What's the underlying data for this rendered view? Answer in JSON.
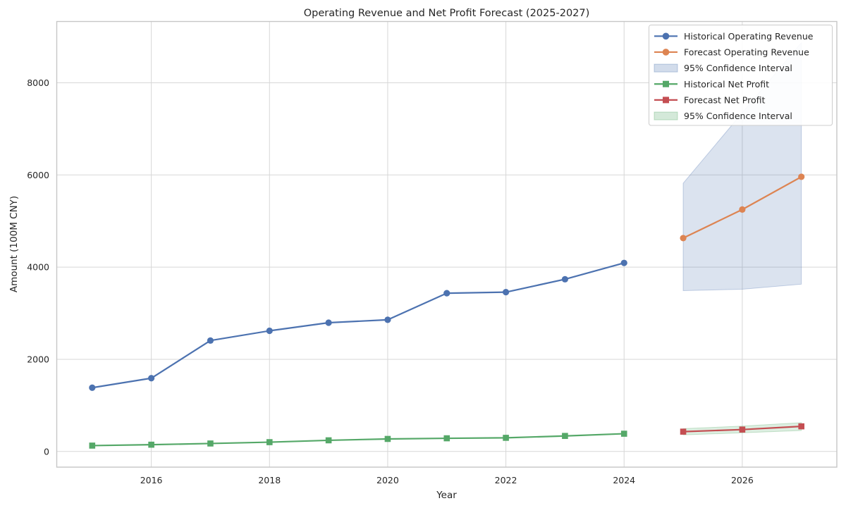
{
  "title": "Operating Revenue and Net Profit Forecast (2025-2027)",
  "chart_data": {
    "type": "line",
    "title": "Operating Revenue and Net Profit Forecast (2025-2027)",
    "xlabel": "Year",
    "ylabel": "Amount (100M CNY)",
    "xlim": [
      2014.4,
      2027.6
    ],
    "ylim": [
      -340,
      9330
    ],
    "xticks": [
      2016,
      2018,
      2020,
      2022,
      2024,
      2026
    ],
    "yticks": [
      0,
      2000,
      4000,
      6000,
      8000
    ],
    "grid": true,
    "grid_color": "#d7d7d7",
    "spine_color": "#c6c6c6",
    "legend_position": "upper right",
    "series": [
      {
        "slug": "historical-operating-revenue",
        "name": "Historical Operating Revenue",
        "kind": "line",
        "marker": "circle",
        "color": "#4C72B0",
        "x": [
          2015,
          2016,
          2017,
          2018,
          2019,
          2020,
          2021,
          2022,
          2023,
          2024
        ],
        "y": [
          1384,
          1590,
          2407,
          2618,
          2794,
          2857,
          3434,
          3457,
          3737,
          4091
        ]
      },
      {
        "slug": "forecast-operating-revenue",
        "name": "Forecast Operating Revenue",
        "kind": "line",
        "marker": "circle",
        "color": "#DD8452",
        "x": [
          2025,
          2026,
          2027
        ],
        "y": [
          4630,
          5250,
          5960
        ]
      },
      {
        "slug": "revenue-confidence-band",
        "name": "95% Confidence Interval",
        "kind": "band",
        "color": "#4C72B0",
        "opacity": 0.2,
        "x": [
          2025,
          2026,
          2027
        ],
        "lower": [
          3490,
          3520,
          3630
        ],
        "upper": [
          5820,
          7350,
          8870
        ]
      },
      {
        "slug": "historical-net-profit",
        "name": "Historical Net Profit",
        "kind": "line",
        "marker": "square",
        "color": "#55A868",
        "x": [
          2015,
          2016,
          2017,
          2018,
          2019,
          2020,
          2021,
          2022,
          2023,
          2024
        ],
        "y": [
          127,
          147,
          173,
          202,
          242,
          272,
          286,
          296,
          337,
          385
        ]
      },
      {
        "slug": "forecast-net-profit",
        "name": "Forecast Net Profit",
        "kind": "line",
        "marker": "square",
        "color": "#C44E52",
        "x": [
          2025,
          2026,
          2027
        ],
        "y": [
          430,
          475,
          545
        ]
      },
      {
        "slug": "net-profit-confidence-band",
        "name": "95% Confidence Interval",
        "kind": "band",
        "color": "#55A868",
        "opacity": 0.2,
        "x": [
          2025,
          2026,
          2027
        ],
        "lower": [
          360,
          405,
          455
        ],
        "upper": [
          495,
          550,
          625
        ]
      }
    ]
  },
  "legend": {
    "entries": [
      {
        "label": "Historical Operating Revenue",
        "swatch": "line-circle",
        "color": "#4C72B0"
      },
      {
        "label": "Forecast Operating Revenue",
        "swatch": "line-circle",
        "color": "#DD8452"
      },
      {
        "label": "95% Confidence Interval",
        "swatch": "patch",
        "color": "#4C72B0"
      },
      {
        "label": "Historical Net Profit",
        "swatch": "line-square",
        "color": "#55A868"
      },
      {
        "label": "Forecast Net Profit",
        "swatch": "line-square",
        "color": "#C44E52"
      },
      {
        "label": "95% Confidence Interval",
        "swatch": "patch",
        "color": "#55A868"
      }
    ]
  },
  "colors": {
    "hist_revenue": "#4C72B0",
    "fcst_revenue": "#DD8452",
    "hist_profit": "#55A868",
    "fcst_profit": "#C44E52",
    "text": "#262626"
  }
}
